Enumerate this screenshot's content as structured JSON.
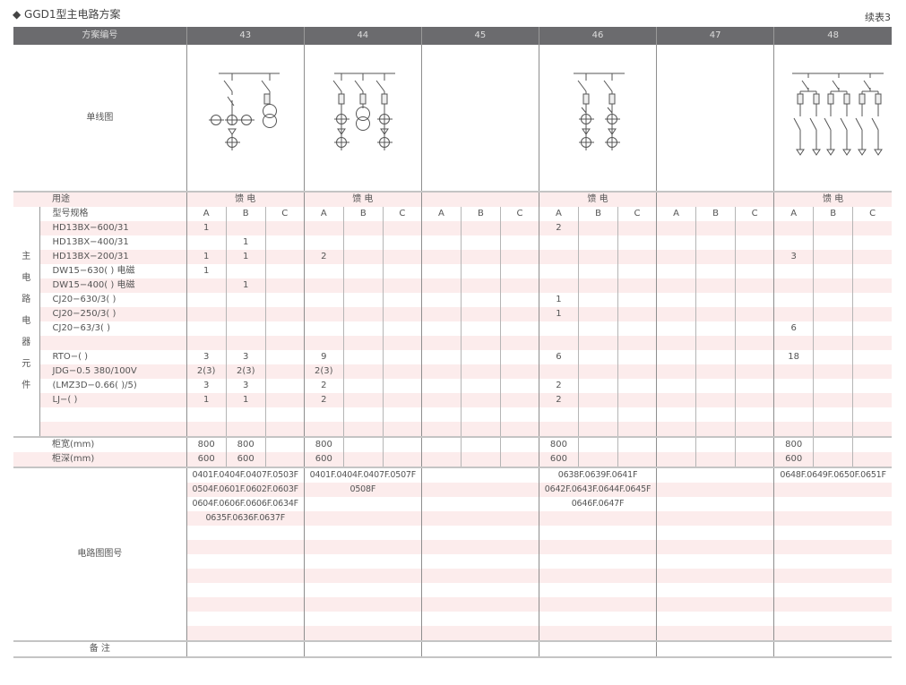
{
  "title": "◆ GGD1型主电路方案",
  "continued": "续表3",
  "header": {
    "label": "方案编号",
    "schemes": [
      "43",
      "44",
      "45",
      "46",
      "47",
      "48"
    ]
  },
  "diagram_label": "单线图",
  "purpose_label": "用途",
  "purposes": [
    "馈 电",
    "馈 电",
    "",
    "馈 电",
    "",
    "馈 电"
  ],
  "group_label": "主电路电器元件",
  "spec_label": "型号规格",
  "subcols": [
    "A",
    "B",
    "C"
  ],
  "items": [
    {
      "label": "HD13BX−600/31",
      "values": [
        "1",
        "",
        "",
        "",
        "",
        "",
        "",
        "",
        "",
        "2",
        "",
        "",
        "",
        "",
        "",
        "",
        "",
        ""
      ]
    },
    {
      "label": "HD13BX−400/31",
      "values": [
        "",
        "1",
        "",
        "",
        "",
        "",
        "",
        "",
        "",
        "",
        "",
        "",
        "",
        "",
        "",
        "",
        "",
        ""
      ]
    },
    {
      "label": "HD13BX−200/31",
      "values": [
        "1",
        "1",
        "",
        "2",
        "",
        "",
        "",
        "",
        "",
        "",
        "",
        "",
        "",
        "",
        "",
        "3",
        "",
        ""
      ]
    },
    {
      "label": "DW15−630( ) 电磁",
      "values": [
        "1",
        "",
        "",
        "",
        "",
        "",
        "",
        "",
        "",
        "",
        "",
        "",
        "",
        "",
        "",
        "",
        "",
        ""
      ]
    },
    {
      "label": "DW15−400( ) 电磁",
      "values": [
        "",
        "1",
        "",
        "",
        "",
        "",
        "",
        "",
        "",
        "",
        "",
        "",
        "",
        "",
        "",
        "",
        "",
        ""
      ]
    },
    {
      "label": "CJ20−630/3( )",
      "values": [
        "",
        "",
        "",
        "",
        "",
        "",
        "",
        "",
        "",
        "1",
        "",
        "",
        "",
        "",
        "",
        "",
        "",
        ""
      ]
    },
    {
      "label": "CJ20−250/3( )",
      "values": [
        "",
        "",
        "",
        "",
        "",
        "",
        "",
        "",
        "",
        "1",
        "",
        "",
        "",
        "",
        "",
        "",
        "",
        ""
      ]
    },
    {
      "label": "CJ20−63/3( )",
      "values": [
        "",
        "",
        "",
        "",
        "",
        "",
        "",
        "",
        "",
        "",
        "",
        "",
        "",
        "",
        "",
        "6",
        "",
        ""
      ]
    },
    {
      "label": "",
      "values": [
        "",
        "",
        "",
        "",
        "",
        "",
        "",
        "",
        "",
        "",
        "",
        "",
        "",
        "",
        "",
        "",
        "",
        ""
      ]
    },
    {
      "label": "RTO−( )",
      "values": [
        "3",
        "3",
        "",
        "9",
        "",
        "",
        "",
        "",
        "",
        "6",
        "",
        "",
        "",
        "",
        "",
        "18",
        "",
        ""
      ]
    },
    {
      "label": "JDG−0.5 380/100V",
      "values": [
        "2(3)",
        "2(3)",
        "",
        "2(3)",
        "",
        "",
        "",
        "",
        "",
        "",
        "",
        "",
        "",
        "",
        "",
        "",
        "",
        ""
      ]
    },
    {
      "label": "(LMZ3D−0.66( )/5)",
      "values": [
        "3",
        "3",
        "",
        "2",
        "",
        "",
        "",
        "",
        "",
        "2",
        "",
        "",
        "",
        "",
        "",
        "",
        "",
        ""
      ]
    },
    {
      "label": "LJ−( )",
      "values": [
        "1",
        "1",
        "",
        "2",
        "",
        "",
        "",
        "",
        "",
        "2",
        "",
        "",
        "",
        "",
        "",
        "",
        "",
        ""
      ]
    },
    {
      "label": "",
      "values": [
        "",
        "",
        "",
        "",
        "",
        "",
        "",
        "",
        "",
        "",
        "",
        "",
        "",
        "",
        "",
        "",
        "",
        ""
      ]
    },
    {
      "label": "",
      "values": [
        "",
        "",
        "",
        "",
        "",
        "",
        "",
        "",
        "",
        "",
        "",
        "",
        "",
        "",
        "",
        "",
        "",
        ""
      ]
    }
  ],
  "cabinet": [
    {
      "label": "柜宽(mm)",
      "values": [
        "800",
        "800",
        "",
        "800",
        "",
        "",
        "",
        "",
        "",
        "800",
        "",
        "",
        "",
        "",
        "",
        "800",
        "",
        ""
      ]
    },
    {
      "label": "柜深(mm)",
      "values": [
        "600",
        "600",
        "",
        "600",
        "",
        "",
        "",
        "",
        "",
        "600",
        "",
        "",
        "",
        "",
        "",
        "600",
        "",
        ""
      ]
    }
  ],
  "circuit_label": "电路图图号",
  "circuit_numbers": [
    [
      "0401F.0404F.0407F.0503F",
      "0504F.0601F.0602F.0603F",
      "0604F.0606F.0606F.0634F",
      "0635F.0636F.0637F"
    ],
    [
      "0401F.0404F.0407F.0507F",
      "0508F"
    ],
    [],
    [
      "0638F.0639F.0641F",
      "0642F.0643F.0644F.0645F",
      "0646F.0647F"
    ],
    [],
    [
      "0648F.0649F.0650F.0651F"
    ]
  ],
  "remark_label": "备 注",
  "colors": {
    "header_bg": "#6b6b6e",
    "stripe": "#fcecec",
    "text": "#555555"
  }
}
